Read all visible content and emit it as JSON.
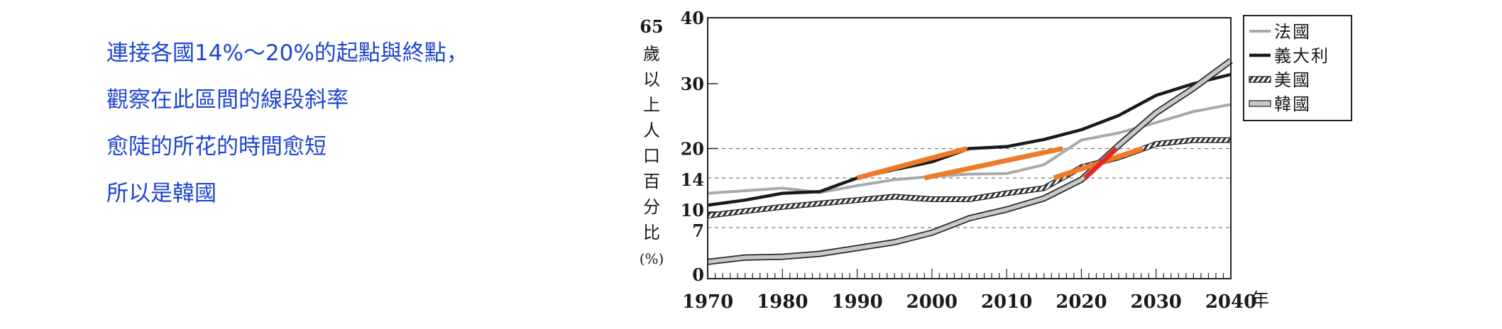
{
  "annotation": {
    "lines": [
      "連接各國14%～20%的起點與終點，",
      "觀察在此區間的線段斜率",
      "愈陡的所花的時間愈短",
      "所以是韓國"
    ],
    "color": "#1f45d0"
  },
  "chart_data": {
    "type": "line",
    "title": "",
    "xlabel": "年",
    "ylabel_top": "65",
    "ylabel_chars": [
      "歲",
      "以",
      "上",
      "人",
      "口",
      "百",
      "分",
      "比",
      "(%)"
    ],
    "xlim": [
      1970,
      2040
    ],
    "ylim": [
      0,
      40
    ],
    "x_ticks": [
      1970,
      1980,
      1990,
      2000,
      2010,
      2020,
      2030,
      2040
    ],
    "x_tick_labels": [
      "1970",
      "1980",
      "1990",
      "2000",
      "2010",
      "2020",
      "2030",
      "2040"
    ],
    "y_ticks": [
      0,
      7,
      10,
      14,
      20,
      30,
      40
    ],
    "y_tick_labels": [
      "0",
      "7",
      "10",
      "14",
      "20",
      "30",
      "40"
    ],
    "reference_lines": [
      7,
      14,
      20
    ],
    "legend_position": "top-right-outside",
    "series": [
      {
        "name": "法國",
        "style": "light-gray",
        "color": "#a9a9a9",
        "x": [
          1970,
          1980,
          1985,
          1990,
          1995,
          2000,
          2005,
          2010,
          2015,
          2020,
          2025,
          2030,
          2035,
          2040
        ],
        "y": [
          12.2,
          12.8,
          12.3,
          13.1,
          13.8,
          14.3,
          14.8,
          14.9,
          16.7,
          21.3,
          22.4,
          24.0,
          25.7,
          26.8
        ]
      },
      {
        "name": "義大利",
        "style": "black",
        "color": "#1a1a1a",
        "x": [
          1970,
          1975,
          1980,
          1985,
          1990,
          1995,
          2000,
          2005,
          2010,
          2015,
          2020,
          2025,
          2030,
          2035,
          2040
        ],
        "y": [
          10.8,
          11.4,
          12.2,
          12.4,
          14.0,
          15.7,
          17.3,
          20.0,
          20.3,
          21.4,
          22.9,
          25.1,
          28.2,
          30.0,
          31.4
        ]
      },
      {
        "name": "美國",
        "style": "hatched",
        "color": "#333333",
        "x": [
          1970,
          1975,
          1980,
          1985,
          1990,
          1995,
          2000,
          2005,
          2010,
          2015,
          2020,
          2025,
          2030,
          2035,
          2040
        ],
        "y": [
          9.3,
          10.1,
          10.6,
          11.0,
          11.4,
          11.8,
          11.5,
          11.5,
          12.2,
          12.8,
          16.2,
          18.2,
          20.7,
          21.3,
          21.3
        ]
      },
      {
        "name": "韓國",
        "style": "double-outline",
        "color": "#c8c8c8",
        "x": [
          1970,
          1975,
          1980,
          1985,
          1990,
          1995,
          2000,
          2005,
          2010,
          2015,
          2020,
          2025,
          2030,
          2035,
          2040
        ],
        "y": [
          2.3,
          2.9,
          3.0,
          3.4,
          4.2,
          5.0,
          6.3,
          8.8,
          10.3,
          11.6,
          13.8,
          20.5,
          25.5,
          29.3,
          33.5
        ]
      }
    ],
    "highlight_segments": [
      {
        "country": "義大利",
        "from": [
          1990,
          14
        ],
        "to": [
          2004.7,
          20
        ],
        "color": "#ee7a2a"
      },
      {
        "country": "法國",
        "from": [
          1999,
          14
        ],
        "to": [
          2017.5,
          20
        ],
        "color": "#ee7a2a"
      },
      {
        "country": "美國",
        "from": [
          2016.3,
          14
        ],
        "to": [
          2028.2,
          20
        ],
        "color": "#ee7a2a"
      },
      {
        "country": "韓國",
        "from": [
          2020.5,
          14
        ],
        "to": [
          2024.7,
          20
        ],
        "color": "#e02a24"
      }
    ]
  }
}
